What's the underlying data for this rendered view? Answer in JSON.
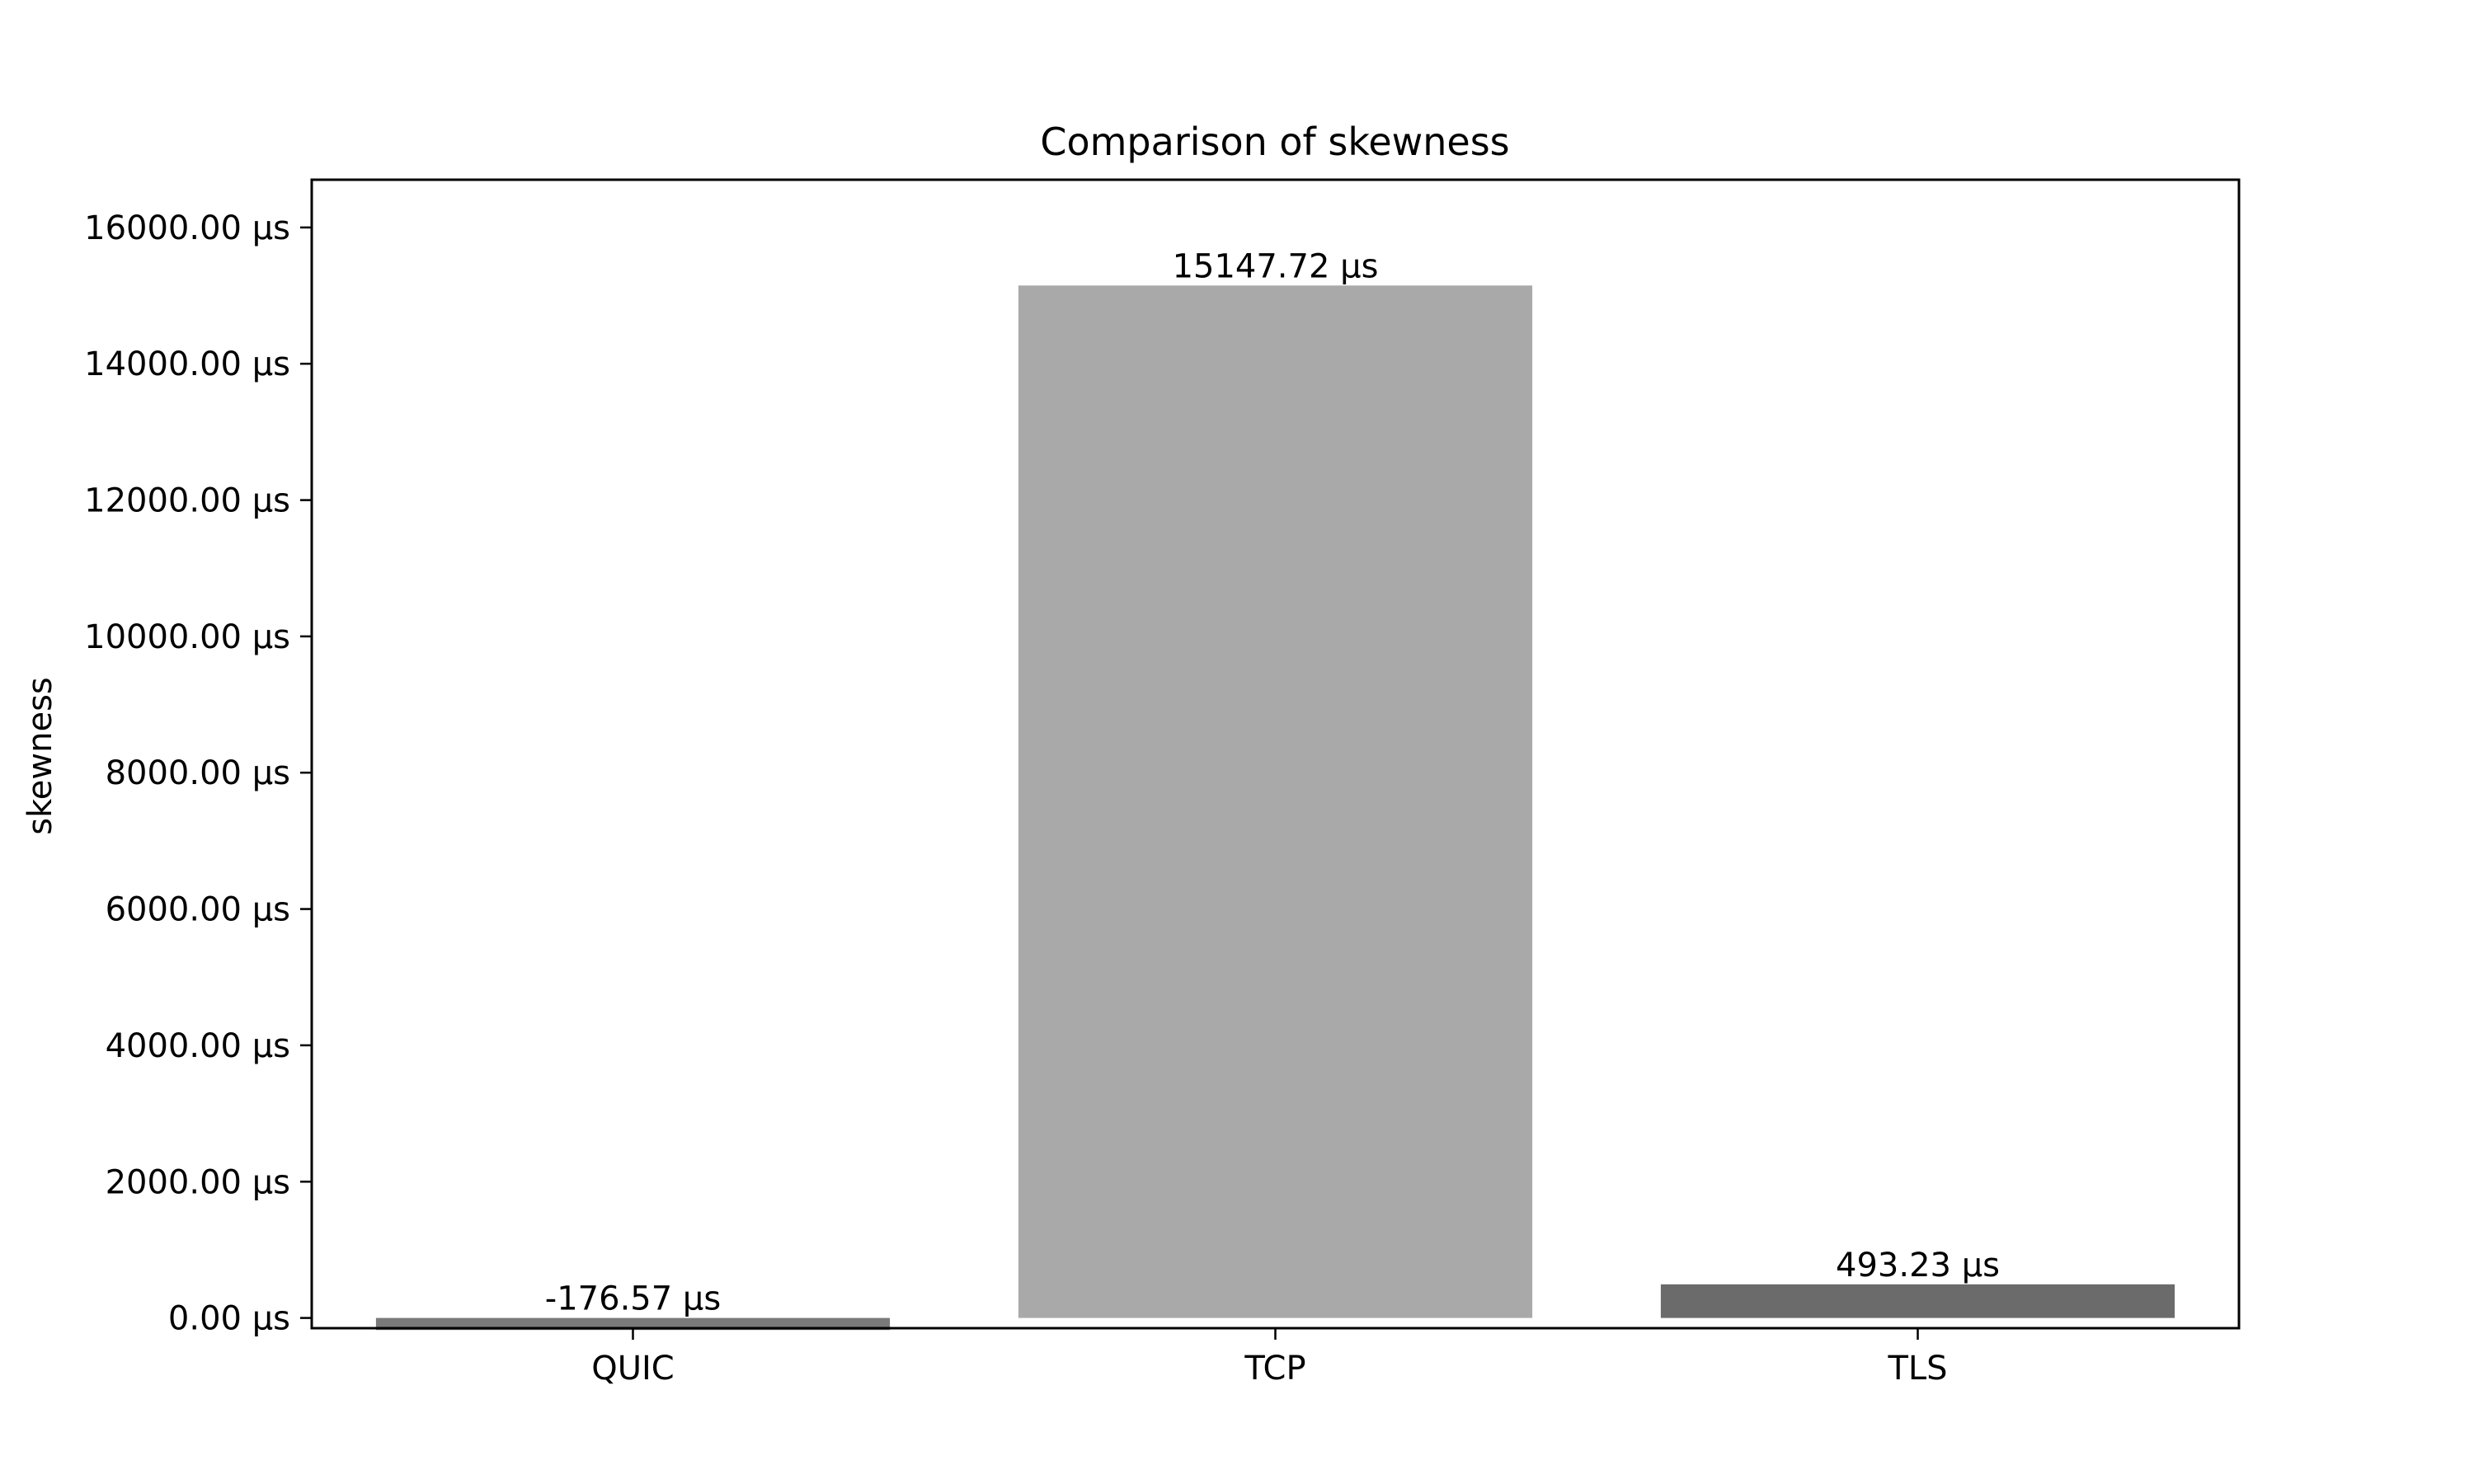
{
  "chart_data": {
    "type": "bar",
    "title": "Comparison of skewness",
    "xlabel": "",
    "ylabel": "skewness",
    "categories": [
      "QUIC",
      "TCP",
      "TLS"
    ],
    "values": [
      -176.57,
      15147.72,
      493.23
    ],
    "value_labels": [
      "-176.57 µs",
      "15147.72 µs",
      "493.23 µs"
    ],
    "bar_colors": [
      "#7a7a7a",
      "#a9a9a9",
      "#6b6b6b"
    ],
    "ylim": [
      -150,
      16700
    ],
    "yticks": [
      0,
      2000,
      4000,
      6000,
      8000,
      10000,
      12000,
      14000,
      16000
    ],
    "ytick_labels": [
      "0.00 µs",
      "2000.00 µs",
      "4000.00 µs",
      "6000.00 µs",
      "8000.00 µs",
      "10000.00 µs",
      "12000.00 µs",
      "14000.00 µs",
      "16000.00 µs"
    ],
    "grid": false,
    "legend": "none"
  }
}
